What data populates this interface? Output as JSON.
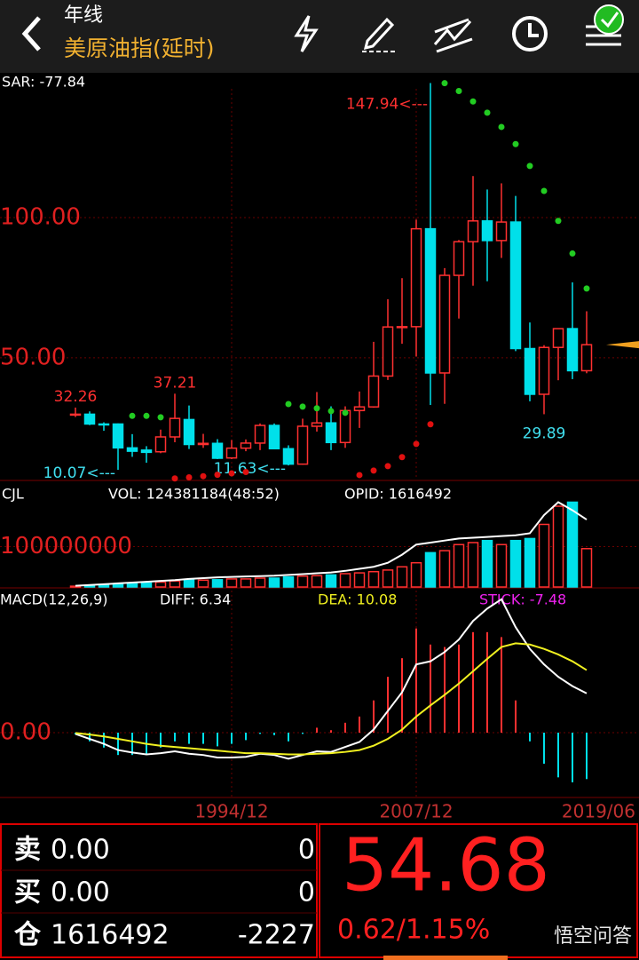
{
  "header": {
    "period": "年线",
    "instrument": "美原油指(延时)"
  },
  "chart_data": {
    "type": "candlestick",
    "categories": [
      null,
      null,
      null,
      null,
      null,
      null,
      null,
      null,
      null,
      null,
      null,
      "1994/12",
      null,
      null,
      null,
      null,
      null,
      null,
      null,
      null,
      null,
      null,
      null,
      null,
      "2007/12",
      null,
      null,
      null,
      null,
      null,
      null,
      null,
      null,
      null,
      null,
      null,
      "2019/06"
    ],
    "open": [
      29.6,
      29.9,
      26.4,
      26.4,
      17.9,
      17.1,
      16.5,
      21.8,
      28.0,
      19.1,
      19.5,
      14.3,
      17.8,
      19.6,
      25.9,
      17.6,
      12.1,
      25.6,
      26.8,
      19.8,
      31.2,
      32.5,
      43.5,
      61.0,
      61.1,
      96.0,
      44.6,
      79.4,
      91.4,
      98.8,
      91.8,
      98.4,
      53.3,
      37.0,
      53.7,
      60.4,
      45.4
    ],
    "high": [
      32.26,
      30.9,
      27.0,
      26.6,
      22.8,
      18.5,
      24.4,
      37.21,
      33.0,
      22.9,
      21.0,
      20.7,
      20.9,
      26.6,
      26.6,
      18.8,
      28.3,
      37.8,
      32.7,
      32.7,
      38.0,
      55.7,
      70.9,
      78.4,
      99.3,
      147.94,
      82.0,
      92.0,
      114.8,
      110.0,
      112.2,
      107.7,
      62.6,
      54.5,
      60.5,
      76.9,
      66.6
    ],
    "low": [
      28.9,
      26.0,
      24.0,
      10.07,
      14.7,
      12.6,
      16.0,
      19.9,
      17.5,
      17.9,
      13.9,
      13.9,
      16.7,
      17.1,
      17.6,
      11.63,
      11.9,
      23.7,
      17.1,
      17.9,
      25.0,
      32.2,
      42.1,
      55.0,
      50.5,
      33.2,
      33.6,
      64.0,
      75.7,
      77.3,
      85.6,
      52.4,
      34.5,
      29.89,
      42.0,
      42.4,
      44.5
    ],
    "close": [
      29.9,
      26.4,
      26.3,
      17.9,
      16.7,
      16.3,
      21.8,
      28.4,
      19.1,
      19.5,
      14.2,
      17.8,
      19.6,
      25.9,
      17.6,
      12.1,
      25.6,
      26.8,
      19.8,
      31.2,
      32.5,
      43.5,
      61.0,
      61.1,
      96.0,
      44.6,
      79.4,
      91.4,
      98.8,
      91.8,
      98.4,
      53.3,
      37.0,
      53.7,
      60.4,
      45.4,
      54.68
    ],
    "high_labels": [
      "32.26",
      null,
      null,
      null,
      null,
      null,
      null,
      "37.21",
      null,
      null,
      null,
      null,
      null,
      null,
      null,
      null,
      null,
      null,
      null,
      null,
      null,
      null,
      null,
      null,
      null,
      "147.94<---",
      null,
      null,
      null,
      null,
      null,
      null,
      null,
      null,
      null,
      null,
      null
    ],
    "low_labels": [
      null,
      null,
      null,
      "10.07<---",
      null,
      null,
      null,
      null,
      null,
      null,
      null,
      null,
      null,
      null,
      null,
      "11.63<---",
      null,
      null,
      null,
      null,
      null,
      null,
      null,
      null,
      null,
      null,
      null,
      null,
      null,
      null,
      null,
      null,
      null,
      "29.89",
      null,
      null,
      null
    ],
    "up_color": "#ff3030",
    "down_color": "#00e0ea",
    "ylim": [
      6.6,
      145.9
    ],
    "yticks": [
      {
        "value": 50,
        "label": "50.00"
      },
      {
        "value": 100,
        "label": "100.00"
      }
    ],
    "sar_label": "SAR: -77.84",
    "sar_above": {
      "color": "#22cc22",
      "values": [
        null,
        null,
        null,
        null,
        29.3,
        29.3,
        28.8,
        null,
        null,
        null,
        null,
        null,
        null,
        null,
        null,
        33.5,
        32.6,
        32.0,
        31.0,
        30.4,
        null,
        null,
        null,
        null,
        null,
        null,
        147.9,
        145.1,
        141.4,
        137.4,
        132.3,
        126.2,
        118.4,
        109.5,
        98.8,
        87.2,
        74.7
      ]
    },
    "sar_below": {
      "color": "#e01010",
      "values": [
        null,
        null,
        null,
        null,
        null,
        null,
        null,
        7.0,
        7.4,
        7.8,
        8.3,
        8.8,
        9.3,
        null,
        null,
        null,
        null,
        null,
        null,
        null,
        8.2,
        9.8,
        11.4,
        14.6,
        19.3,
        26.3,
        null,
        null,
        null,
        null,
        null,
        null,
        null,
        null,
        null,
        null,
        null
      ]
    },
    "volume": {
      "title": "CJL",
      "vol_label": "VOL: 124381184(48:52)",
      "opid_label": "OPID: 1616492",
      "values": [
        2000000.0,
        3000000.0,
        4000000.0,
        6000000.0,
        8000000.0,
        10000000.0,
        12000000.0,
        15000000.0,
        17000000.0,
        17000000.0,
        18000000.0,
        20000000.0,
        20000000.0,
        22000000.0,
        22000000.0,
        25000000.0,
        27000000.0,
        28000000.0,
        30000000.0,
        33000000.0,
        35000000.0,
        38000000.0,
        42000000.0,
        50000000.0,
        60000000.0,
        85000000.0,
        90000000.0,
        105000000.0,
        110000000.0,
        115000000.0,
        105000000.0,
        115000000.0,
        120000000.0,
        155000000.0,
        200000000.0,
        210000000.0,
        95000000.0
      ],
      "ma": [
        3000000.0,
        5000000.0,
        7000000.0,
        9000000.0,
        11000000.0,
        13000000.0,
        15000000.0,
        17000000.0,
        20000000.0,
        22000000.0,
        24000000.0,
        25000000.0,
        26000000.0,
        27000000.0,
        28000000.0,
        30000000.0,
        32000000.0,
        34000000.0,
        36000000.0,
        40000000.0,
        45000000.0,
        50000000.0,
        60000000.0,
        80000000.0,
        105000000.0,
        110000000.0,
        115000000.0,
        120000000.0,
        122000000.0,
        124000000.0,
        126000000.0,
        128000000.0,
        133000000.0,
        178000000.0,
        210000000.0,
        190000000.0,
        167000000.0
      ],
      "ma_color": "#ffffff",
      "ylim": [
        0,
        255000000
      ],
      "yticks": [
        100000000
      ]
    },
    "macd": {
      "title": "MACD(12,26,9)",
      "diff_label": "DIFF: 6.34",
      "dea_label": "DEA: 10.08",
      "stick_label": "STICK: -7.48",
      "diff": [
        -0.2,
        -1.0,
        -1.8,
        -2.8,
        -3.2,
        -3.5,
        -3.3,
        -3.0,
        -3.4,
        -3.6,
        -4.0,
        -4.0,
        -3.9,
        -3.4,
        -3.6,
        -4.2,
        -3.6,
        -3.0,
        -3.1,
        -2.3,
        -1.5,
        0.5,
        3.5,
        6.5,
        11.0,
        11.5,
        13.0,
        15.0,
        18.0,
        20.0,
        21.5,
        17.0,
        13.5,
        11.0,
        9.0,
        7.5,
        6.34
      ],
      "dea": [
        -0.05,
        -0.3,
        -0.6,
        -1.0,
        -1.4,
        -1.8,
        -2.1,
        -2.3,
        -2.5,
        -2.7,
        -2.9,
        -3.1,
        -3.3,
        -3.3,
        -3.4,
        -3.5,
        -3.5,
        -3.4,
        -3.3,
        -3.1,
        -2.8,
        -2.1,
        -1.0,
        0.5,
        2.6,
        4.4,
        6.1,
        7.9,
        9.9,
        11.9,
        13.8,
        14.4,
        14.2,
        13.5,
        12.6,
        11.5,
        10.08
      ],
      "stick": [
        -0.3,
        -1.4,
        -2.4,
        -3.6,
        -3.6,
        -3.4,
        -2.4,
        -1.4,
        -1.8,
        -1.8,
        -2.2,
        -1.8,
        -1.2,
        -0.2,
        -0.4,
        -1.4,
        -0.2,
        0.8,
        0.4,
        1.6,
        2.6,
        5.2,
        9.0,
        12.0,
        16.8,
        14.2,
        13.8,
        14.2,
        16.2,
        16.2,
        15.4,
        5.2,
        -1.4,
        -5.0,
        -7.2,
        -8.0,
        -7.48
      ],
      "diff_color": "#ffffff",
      "dea_color": "#f0f020",
      "ylim": [
        -10.3,
        22.9
      ],
      "yticks": [
        {
          "value": 0,
          "label": "0.00"
        }
      ]
    }
  },
  "quote": {
    "rows": [
      {
        "label": "卖",
        "price": "0.00",
        "qty": "0"
      },
      {
        "label": "买",
        "price": "0.00",
        "qty": "0"
      },
      {
        "label": "仓",
        "price": "1616492",
        "qty": "-2227"
      }
    ],
    "last": "54.68",
    "change": "0.62/1.15%"
  },
  "watermark": "悟空问答"
}
